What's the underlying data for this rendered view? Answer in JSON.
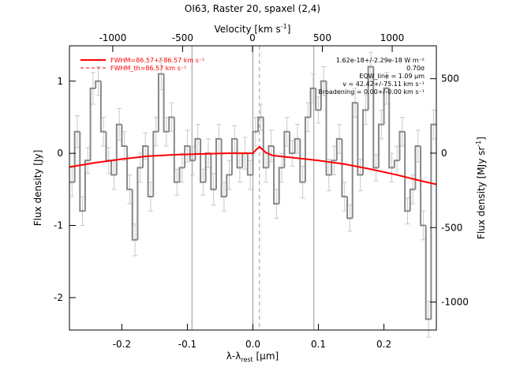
{
  "chart_data": {
    "type": "step",
    "title": "OI63, Raster 20, spaxel (2,4)",
    "xlabel": [
      "λ-λ",
      "rest",
      " [μm]"
    ],
    "ylabel": "Flux density [Jy]",
    "x2label": [
      "Velocity [km s",
      "-1",
      "]"
    ],
    "y2label": [
      "Flux density [MJy sr",
      "-1",
      "]"
    ],
    "xlim": [
      -0.28,
      0.28
    ],
    "ylim": [
      -2.45,
      1.49
    ],
    "x2lim": [
      -1310,
      1316
    ],
    "y2lim": [
      -1188,
      721
    ],
    "xticks": [
      -0.2,
      -0.1,
      {
        "value": 0,
        "label": "0.0"
      },
      0.1,
      0.2
    ],
    "yticks": [
      1,
      0,
      -1,
      -2
    ],
    "x2ticks": [
      -1000,
      -500,
      0,
      500,
      1000
    ],
    "y2ticks": [
      500,
      0,
      -500,
      -1000
    ],
    "series": [
      {
        "name": "spectrum",
        "color": "#888888",
        "x": [
          -0.276,
          -0.268,
          -0.26,
          -0.252,
          -0.244,
          -0.236,
          -0.228,
          -0.22,
          -0.212,
          -0.204,
          -0.196,
          -0.188,
          -0.18,
          -0.172,
          -0.164,
          -0.156,
          -0.148,
          -0.14,
          -0.132,
          -0.124,
          -0.116,
          -0.108,
          -0.1,
          -0.092,
          -0.084,
          -0.076,
          -0.068,
          -0.06,
          -0.052,
          -0.044,
          -0.036,
          -0.028,
          -0.02,
          -0.012,
          -0.004,
          0.004,
          0.012,
          0.02,
          0.028,
          0.036,
          0.044,
          0.052,
          0.06,
          0.068,
          0.076,
          0.084,
          0.092,
          0.1,
          0.108,
          0.116,
          0.124,
          0.132,
          0.14,
          0.148,
          0.156,
          0.164,
          0.172,
          0.18,
          0.188,
          0.196,
          0.204,
          0.212,
          0.22,
          0.228,
          0.236,
          0.244,
          0.252,
          0.26,
          0.268,
          0.276
        ],
        "values": [
          -0.4,
          0.3,
          -0.8,
          -0.1,
          0.9,
          1.0,
          0.3,
          -0.1,
          -0.3,
          0.4,
          0.1,
          -0.5,
          -1.2,
          -0.2,
          0.1,
          -0.6,
          0.3,
          1.1,
          0.3,
          0.5,
          -0.4,
          -0.2,
          0.1,
          -0.1,
          0.2,
          -0.4,
          0.0,
          -0.5,
          0.2,
          -0.6,
          -0.3,
          0.2,
          -0.2,
          0.0,
          -0.3,
          0.3,
          0.5,
          -0.2,
          0.1,
          -0.7,
          -0.2,
          0.3,
          0.0,
          0.2,
          -0.4,
          0.5,
          0.9,
          0.6,
          1.0,
          -0.3,
          -0.1,
          0.2,
          -0.6,
          -0.9,
          0.7,
          -0.3,
          0.6,
          1.2,
          -0.2,
          0.4,
          0.9,
          -0.2,
          -0.1,
          0.3,
          -0.8,
          -0.5,
          0.1,
          -1.0,
          -2.3,
          0.4
        ],
        "errors": [
          0.2,
          0.22,
          0.2,
          0.18,
          0.22,
          0.2,
          0.2,
          0.18,
          0.2,
          0.22,
          0.2,
          0.2,
          0.22,
          0.2,
          0.18,
          0.2,
          0.2,
          0.22,
          0.2,
          0.2,
          0.18,
          0.2,
          0.22,
          0.2,
          0.2,
          0.18,
          0.2,
          0.22,
          0.2,
          0.2,
          0.2,
          0.18,
          0.2,
          0.22,
          0.2,
          0.2,
          0.18,
          0.2,
          0.22,
          0.2,
          0.2,
          0.2,
          0.18,
          0.2,
          0.22,
          0.2,
          0.2,
          0.18,
          0.2,
          0.22,
          0.2,
          0.2,
          0.2,
          0.18,
          0.2,
          0.22,
          0.2,
          0.2,
          0.18,
          0.2,
          0.22,
          0.2,
          0.2,
          0.2,
          0.18,
          0.2,
          0.22,
          0.2,
          0.25,
          0.2
        ]
      },
      {
        "name": "fit",
        "color": "#ff0000",
        "x": [
          -0.28,
          -0.24,
          -0.2,
          -0.16,
          -0.12,
          -0.08,
          -0.04,
          -0.02,
          0.0,
          0.005,
          0.01,
          0.015,
          0.02,
          0.03,
          0.06,
          0.1,
          0.14,
          0.18,
          0.22,
          0.26,
          0.28
        ],
        "values": [
          -0.19,
          -0.13,
          -0.08,
          -0.04,
          -0.02,
          -0.01,
          0.0,
          0.0,
          0.0,
          0.05,
          0.09,
          0.05,
          0.01,
          -0.03,
          -0.06,
          -0.1,
          -0.15,
          -0.22,
          -0.3,
          -0.39,
          -0.43
        ]
      }
    ],
    "vlines": [
      {
        "x": -0.093,
        "style": "solid",
        "color": "#999999"
      },
      {
        "x": 0.0,
        "style": "solid",
        "color": "#999999"
      },
      {
        "x": 0.093,
        "style": "solid",
        "color": "#999999"
      },
      {
        "x": 0.01,
        "style": "dashed",
        "color": "#999999"
      }
    ],
    "legend": [
      {
        "label": "FWHM=86.57+/-86.57 km s⁻¹",
        "style": "solid",
        "color": "#ff0000"
      },
      {
        "label": "FWHM_th=86.57 km s⁻¹",
        "style": "dashed",
        "color": "#ff0000"
      }
    ],
    "annotations": [
      "1.62e-18+/-2.29e-18 W m⁻²",
      "0.70σ",
      "EQW_line = 1.09 μm",
      "v = 42.42+/-75.11 km s⁻¹",
      "Broadening = 0.00+/-0.00 km s⁻¹"
    ]
  }
}
